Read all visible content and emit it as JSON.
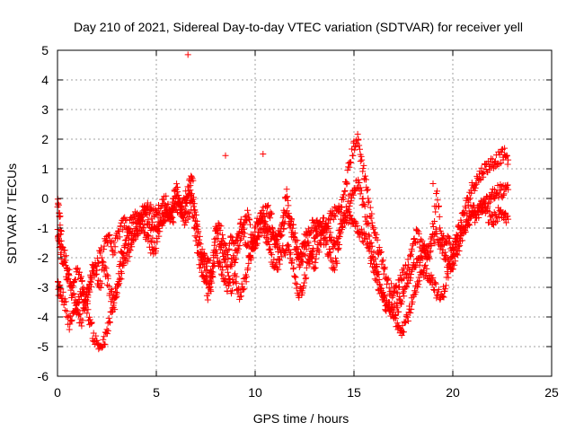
{
  "chart_data": {
    "type": "scatter",
    "title": "Day 210 of 2021, Sidereal Day-to-day VTEC variation (SDTVAR) for receiver yell",
    "xlabel": "GPS time / hours",
    "ylabel": "SDTVAR / TECUs",
    "xlim": [
      0,
      25
    ],
    "ylim": [
      -6,
      5
    ],
    "xticks": [
      0,
      5,
      10,
      15,
      20,
      25
    ],
    "yticks": [
      -6,
      -5,
      -4,
      -3,
      -2,
      -1,
      0,
      1,
      2,
      3,
      4,
      5
    ],
    "grid": true,
    "marker": "+",
    "color": "#ff0000",
    "series": [
      {
        "name": "SDTVAR",
        "trace_x": [
          0.0,
          0.1,
          0.2,
          0.4,
          0.6,
          0.8,
          1.0,
          1.2,
          1.4,
          1.6,
          1.8,
          2.0,
          2.2,
          2.4,
          2.6,
          2.8,
          3.0,
          3.2,
          3.4,
          3.6,
          3.8,
          4.0,
          4.2,
          4.4,
          4.6,
          4.8,
          5.0,
          5.2,
          5.4,
          5.6,
          5.8,
          6.0,
          6.2,
          6.4,
          6.6,
          6.8,
          7.0,
          7.2,
          7.4,
          7.6,
          7.8,
          8.0,
          8.2,
          8.4,
          8.6,
          8.8,
          9.0,
          9.2,
          9.4,
          9.6,
          9.8,
          10.0,
          10.2,
          10.4,
          10.6,
          10.8,
          11.0,
          11.2,
          11.4,
          11.6,
          11.8,
          12.0,
          12.2,
          12.4,
          12.6,
          12.8,
          13.0,
          13.2,
          13.4,
          13.6,
          13.8,
          14.0,
          14.2,
          14.4,
          14.6,
          14.8,
          15.0,
          15.2,
          15.4,
          15.6,
          15.8,
          16.0,
          16.2,
          16.4,
          16.6,
          16.8,
          17.0,
          17.2,
          17.4,
          17.6,
          17.8,
          18.0,
          18.2,
          18.4,
          18.6,
          18.8,
          19.0,
          19.2,
          19.4,
          19.6,
          19.8,
          20.0,
          20.2,
          20.4,
          20.6,
          20.8,
          21.0,
          21.2,
          21.4,
          21.6,
          21.8,
          22.0,
          22.2,
          22.4,
          22.6,
          22.8
        ],
        "traces": [
          [
            -0.2,
            -0.5,
            -1.4,
            -2.0,
            -2.6,
            -3.0,
            -2.4,
            -2.8,
            -3.4,
            -3.0,
            -2.2,
            -2.6,
            -3.0,
            -1.5,
            -1.2,
            -1.8,
            -1.4,
            -1.0,
            -0.8,
            -1.0,
            -0.6,
            -0.7,
            -0.6,
            -0.4,
            -0.2,
            -0.6,
            -0.3,
            -0.5,
            0.1,
            -0.4,
            -0.5,
            0.1,
            -0.2,
            -0.6,
            0.3,
            0.9,
            -0.6,
            -1.8,
            -2.0,
            -2.2,
            -2.4,
            -1.2,
            -1.0,
            -1.5,
            -2.0,
            -1.3,
            -1.6,
            -1.0,
            -0.8,
            -0.5,
            -1.2,
            -1.6,
            -1.2,
            -0.5,
            -0.3,
            -0.6,
            -1.2,
            -1.8,
            -0.6,
            0.2,
            -1.0,
            -1.5,
            -2.2,
            -2.0,
            -1.6,
            -1.8,
            -2.4,
            -1.7,
            -1.2,
            -1.0,
            -0.6,
            -0.5,
            -0.4,
            -0.2,
            0.5,
            1.2,
            1.8,
            2.0,
            1.2,
            0.6,
            -0.4,
            -1.0,
            -1.6,
            -2.0,
            -2.6,
            -3.0,
            -3.2,
            -3.0,
            -2.6,
            -2.4,
            -2.2,
            -1.4,
            -1.2,
            -1.6,
            -1.8,
            -2.0,
            -1.0,
            0.3,
            -1.2,
            -1.6,
            -1.4,
            -1.8,
            -1.2,
            -0.8,
            -0.4,
            0.0,
            0.4,
            0.6,
            0.8,
            1.0,
            1.1,
            1.2,
            1.3,
            1.4,
            1.5,
            1.3
          ],
          [
            -3.0,
            -3.1,
            -3.2,
            -3.6,
            -4.2,
            -4.0,
            -3.5,
            -3.2,
            -3.4,
            -4.0,
            -4.6,
            -4.9,
            -5.0,
            -4.8,
            -4.2,
            -3.8,
            -3.2,
            -2.6,
            -2.2,
            -1.8,
            -1.4,
            -1.2,
            -0.8,
            -0.5,
            -0.8,
            -1.2,
            -1.0,
            -0.9,
            -0.6,
            -0.4,
            -0.8,
            -0.2,
            -0.4,
            -0.1,
            0.2,
            0.0,
            -0.9,
            -1.5,
            -2.2,
            -2.7,
            -3.0,
            -1.0,
            -1.5,
            -2.0,
            -2.4,
            -3.0,
            -2.6,
            -3.2,
            -3.0,
            -2.5,
            -1.8,
            -1.4,
            -0.9,
            -1.0,
            -1.4,
            -2.0,
            -2.4,
            -2.2,
            -1.8,
            -1.6,
            -2.0,
            -2.6,
            -3.2,
            -3.0,
            -2.4,
            -2.0,
            -1.4,
            -1.0,
            -1.3,
            -1.6,
            -2.0,
            -2.4,
            -1.8,
            -1.0,
            -0.4,
            0.0,
            0.2,
            0.6,
            0.0,
            -0.6,
            -1.4,
            -2.0,
            -2.6,
            -3.2,
            -3.6,
            -3.8,
            -4.0,
            -4.2,
            -4.4,
            -4.2,
            -3.8,
            -3.4,
            -3.0,
            -2.6,
            -2.4,
            -2.6,
            -2.8,
            -3.2,
            -3.4,
            -3.0,
            -2.4,
            -2.0,
            -1.6,
            -1.2,
            -0.9,
            -0.6,
            -0.4,
            -0.5,
            -0.3,
            -0.2,
            -0.1,
            0.1,
            0.2,
            0.3,
            0.2,
            0.3
          ],
          [
            -1.2,
            -1.4,
            -2.0,
            -2.4,
            -2.8,
            -3.4,
            -3.8,
            -4.2,
            -3.6,
            -3.0,
            -2.6,
            -2.2,
            -1.8,
            -2.4,
            -3.0,
            -3.5,
            -3.0,
            -2.0,
            -1.6,
            -1.4,
            -1.2,
            -1.0,
            -0.9,
            -1.0,
            -1.4,
            -1.8,
            -1.6,
            -0.8,
            -0.4,
            -0.7,
            -0.4,
            0.4,
            -0.4,
            -0.8,
            -0.5,
            -0.2,
            -1.4,
            -2.2,
            -2.6,
            -3.2,
            -2.8,
            -1.8,
            -2.3,
            -2.6,
            -3.0,
            -2.2,
            -2.0,
            -1.4,
            -1.2,
            -1.6,
            -1.9,
            -1.0,
            -0.6,
            -0.8,
            -1.0,
            -1.2,
            -1.6,
            -1.2,
            -1.0,
            -0.6,
            -0.8,
            -1.2,
            -1.8,
            -1.6,
            -1.2,
            -1.0,
            -0.9,
            -0.8,
            -0.8,
            -1.0,
            -1.2,
            -1.6,
            -1.2,
            -0.8,
            -0.6,
            -0.6,
            -0.8,
            -1.0,
            -1.2,
            -1.4,
            -1.8,
            -2.4,
            -2.8,
            -3.2,
            -3.5,
            -3.7,
            -3.8,
            -3.7,
            -3.4,
            -3.0,
            -2.6,
            -2.4,
            -2.2,
            -2.0,
            -1.8,
            -1.6,
            -1.4,
            -1.2,
            -1.6,
            -2.0,
            -2.2,
            -2.2,
            -1.8,
            -1.4,
            -1.0,
            -0.8,
            -0.6,
            -0.6,
            -0.4,
            -0.3,
            -0.6,
            -0.8,
            -0.6,
            -0.4,
            -0.5,
            -0.7
          ]
        ]
      }
    ],
    "outliers": [
      {
        "x": 6.6,
        "y": 4.85
      },
      {
        "x": 8.5,
        "y": 1.45
      },
      {
        "x": 10.4,
        "y": 1.5
      },
      {
        "x": 19.0,
        "y": 0.5
      }
    ]
  }
}
